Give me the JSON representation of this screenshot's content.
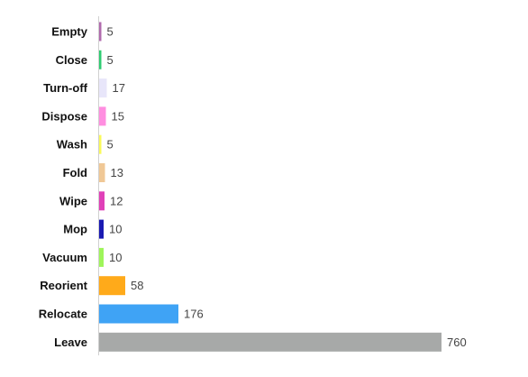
{
  "chart_data": {
    "type": "bar",
    "orientation": "horizontal",
    "categories": [
      "Empty",
      "Close",
      "Turn-off",
      "Dispose",
      "Wash",
      "Fold",
      "Wipe",
      "Mop",
      "Vacuum",
      "Reorient",
      "Relocate",
      "Leave"
    ],
    "values": [
      5,
      5,
      17,
      15,
      5,
      13,
      12,
      10,
      10,
      58,
      176,
      760
    ],
    "colors": [
      "#b06aad",
      "#2ecc71",
      "#e8e6fa",
      "#ff8ee0",
      "#f9f95a",
      "#f0c896",
      "#e040b8",
      "#1a1ab2",
      "#9ef55a",
      "#ffaa1a",
      "#3fa3f5",
      "#a7a9a8"
    ],
    "value_labels": [
      "5",
      "5",
      "17",
      "15",
      "5",
      "13",
      "12",
      "10",
      "10",
      "58",
      "176",
      "760"
    ],
    "title": "",
    "xlabel": "",
    "ylabel": "",
    "grid": false,
    "legend": "none"
  }
}
